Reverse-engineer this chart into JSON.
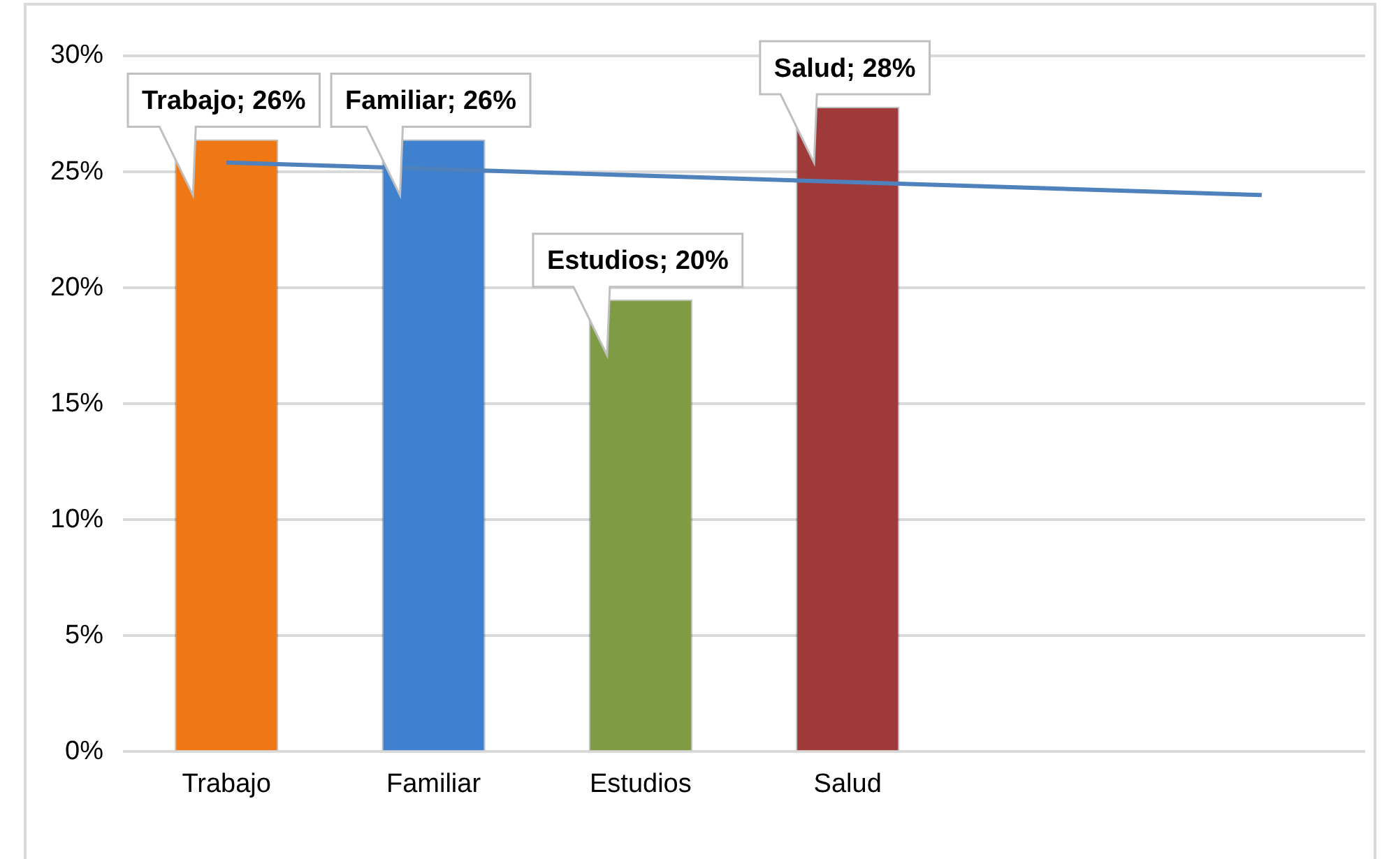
{
  "chart_data": {
    "type": "bar",
    "categories": [
      "Trabajo",
      "Familiar",
      "Estudios",
      "Salud",
      null,
      null
    ],
    "series": [
      {
        "colors": [
          "#f07814",
          "#3f80cf",
          "#7f9c45",
          "#9e3b3a",
          null,
          null
        ],
        "values": [
          26.4,
          26.4,
          19.5,
          27.8,
          null,
          null
        ],
        "value_labels": [
          "Trabajo; 26%",
          "Familiar; 26%",
          "Estudios; 20%",
          "Salud; 28%",
          null,
          null
        ]
      },
      {
        "type": "line",
        "color": "#4f81bd",
        "values": [
          25.4,
          null,
          null,
          null,
          null,
          24.0
        ]
      }
    ],
    "ylim": [
      0,
      30
    ],
    "yticks": [
      {
        "value": 0,
        "label": "0%"
      },
      {
        "value": 5,
        "label": "5%"
      },
      {
        "value": 10,
        "label": "10%"
      },
      {
        "value": 15,
        "label": "15%"
      },
      {
        "value": 20,
        "label": "20%"
      },
      {
        "value": 25,
        "label": "25%"
      },
      {
        "value": 30,
        "label": "30%"
      }
    ],
    "grid": "y",
    "legend": false
  }
}
